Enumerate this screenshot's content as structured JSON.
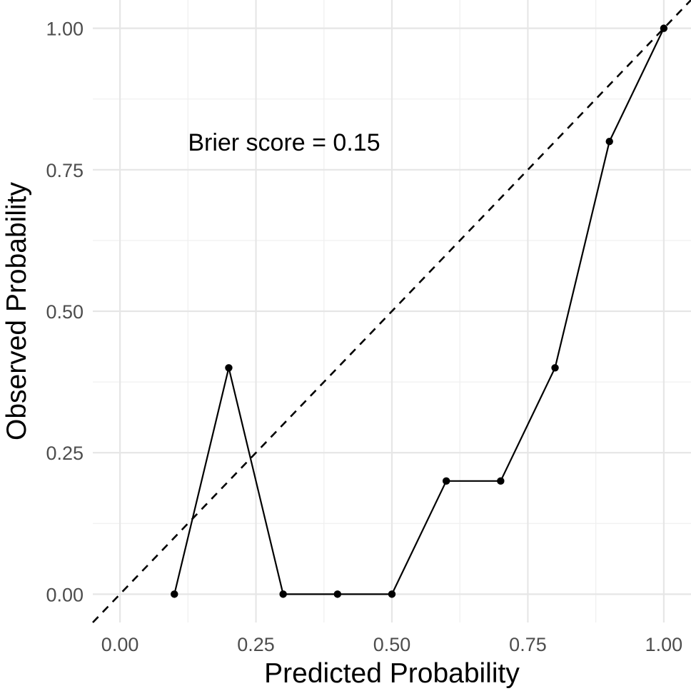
{
  "chart_data": {
    "type": "line",
    "xlabel": "Predicted Probability",
    "ylabel": "Observed Probability",
    "xlim": [
      -0.05,
      1.05
    ],
    "ylim": [
      -0.05,
      1.05
    ],
    "x_ticks": [
      "0.00",
      "0.25",
      "0.50",
      "0.75",
      "1.00"
    ],
    "y_ticks": [
      "0.00",
      "0.25",
      "0.50",
      "0.75",
      "1.00"
    ],
    "x_tick_values": [
      0,
      0.25,
      0.5,
      0.75,
      1
    ],
    "y_tick_values": [
      0,
      0.25,
      0.5,
      0.75,
      1
    ],
    "grid": true,
    "annotation": {
      "text": "Brier score = 0.15",
      "x": 0.125,
      "y": 0.8
    },
    "reference_line": {
      "style": "dashed",
      "slope": 1,
      "intercept": 0
    },
    "series": [
      {
        "x": [
          0.1,
          0.2,
          0.3,
          0.4,
          0.5,
          0.6,
          0.7,
          0.8,
          0.9,
          1.0
        ],
        "y": [
          0.0,
          0.4,
          0.0,
          0.0,
          0.0,
          0.2,
          0.2,
          0.4,
          0.8,
          1.0
        ]
      }
    ]
  }
}
